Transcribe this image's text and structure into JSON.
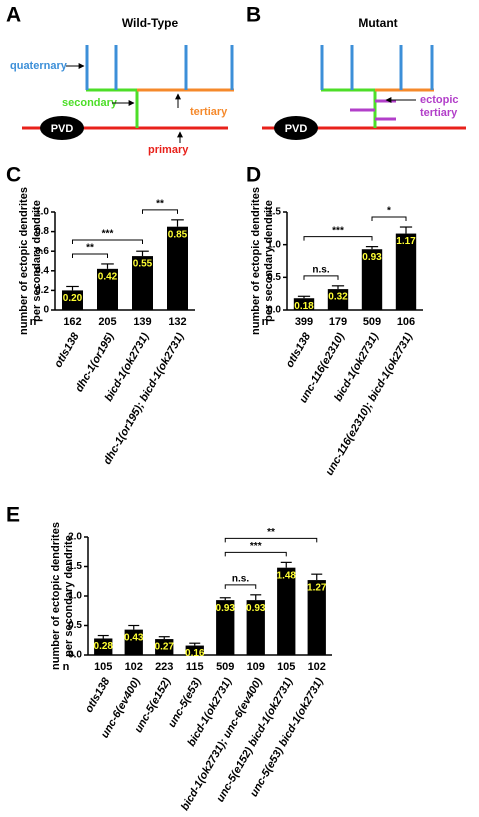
{
  "diagrams": [
    {
      "letter": "A",
      "title": "Wild-Type",
      "cell": "PVD",
      "quaternary": "quaternary",
      "secondary": "secondary",
      "tertiary": "tertiary",
      "primary": "primary"
    },
    {
      "letter": "B",
      "title": "Mutant",
      "cell": "PVD",
      "ectopic": "ectopic",
      "tertiary": "tertiary"
    }
  ],
  "chart_data": [
    {
      "type": "bar",
      "panel": "C",
      "ylabel": [
        "number of ectopic dendrites",
        "per secondary dendrite"
      ],
      "color": "#000000",
      "label_color": "#ffff33",
      "categories": [
        "otIs138",
        "dhc-1(or195)",
        "bicd-1(ok2731)",
        "dhc-1(or195); bicd-1(ok2731)"
      ],
      "values": [
        0.2,
        0.42,
        0.55,
        0.85
      ],
      "value_labels": [
        "0.20",
        "0.42",
        "0.55",
        "0.85"
      ],
      "errors": [
        0.04,
        0.05,
        0.05,
        0.07
      ],
      "n_label": "n",
      "n": [
        162,
        205,
        139,
        132
      ],
      "ylim": [
        0,
        1.0
      ],
      "yticks": [
        0,
        0.2,
        0.4,
        0.6,
        0.8,
        {
          "value": 1.0,
          "label": "1.0"
        }
      ],
      "significance": [
        {
          "from": 0,
          "to": 1,
          "label": "**"
        },
        {
          "from": 0,
          "to": 2,
          "label": "***"
        },
        {
          "from": 2,
          "to": 3,
          "label": "**"
        }
      ]
    },
    {
      "type": "bar",
      "panel": "D",
      "ylabel": [
        "number of ectopic dendrites",
        "per secondary dendrite"
      ],
      "color": "#000000",
      "label_color": "#ffff33",
      "categories": [
        "otIs138",
        "unc-116(e2310)",
        "bicd-1(ok2731)",
        "unc-116(e2310); bicd-1(ok2731)"
      ],
      "values": [
        0.18,
        0.32,
        0.93,
        1.17
      ],
      "value_labels": [
        "0.18",
        "0.32",
        "0.93",
        "1.17"
      ],
      "errors": [
        0.03,
        0.05,
        0.04,
        0.1
      ],
      "n_label": "n",
      "n": [
        399,
        179,
        509,
        106
      ],
      "ylim": [
        0,
        1.5
      ],
      "yticks": [
        {
          "value": 0,
          "label": "0.0"
        },
        0.5,
        {
          "value": 1.0,
          "label": "1.0"
        },
        1.5
      ],
      "significance": [
        {
          "from": 0,
          "to": 1,
          "label": "n.s."
        },
        {
          "from": 0,
          "to": 2,
          "label": "***"
        },
        {
          "from": 2,
          "to": 3,
          "label": "*"
        }
      ]
    },
    {
      "type": "bar",
      "panel": "E",
      "ylabel": [
        "number of ectopic dendrites",
        "per secondary dendrite"
      ],
      "color": "#000000",
      "label_color": "#ffff33",
      "categories": [
        "otIs138",
        "unc-6(ev400)",
        "unc-5(e152)",
        "unc-5(e53)",
        "bicd-1(ok2731)",
        "bicd-1(ok2731); unc-6(ev400)",
        "unc-5(e152) bicd-1(ok2731)",
        "unc-5(e53) bicd-1(ok2731)"
      ],
      "values": [
        0.28,
        0.43,
        0.27,
        0.16,
        0.93,
        0.93,
        1.48,
        1.27
      ],
      "value_labels": [
        "0.28",
        "0.43",
        "0.27",
        "0.16",
        "0.93",
        "0.93",
        "1.48",
        "1.27"
      ],
      "errors": [
        0.05,
        0.07,
        0.04,
        0.04,
        0.04,
        0.09,
        0.09,
        0.1
      ],
      "n_label": "n",
      "n": [
        105,
        102,
        223,
        115,
        509,
        109,
        105,
        102
      ],
      "ylim": [
        0,
        2.0
      ],
      "yticks": [
        {
          "value": 0,
          "label": "0.0"
        },
        0.5,
        {
          "value": 1.0,
          "label": "1.0"
        },
        1.5,
        {
          "value": 2.0,
          "label": "2.0"
        }
      ],
      "significance": [
        {
          "from": 4,
          "to": 5,
          "label": "n.s."
        },
        {
          "from": 4,
          "to": 6,
          "label": "***"
        },
        {
          "from": 4,
          "to": 7,
          "label": "**"
        }
      ]
    }
  ]
}
